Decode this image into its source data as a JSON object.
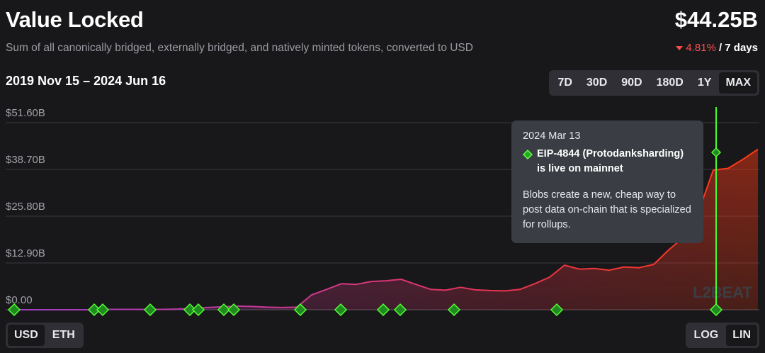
{
  "header": {
    "title": "Value Locked",
    "subtitle": "Sum of all canonically bridged, externally bridged, and natively minted tokens, converted to USD",
    "total": "$44.25B",
    "change": "4.81%",
    "change_period": "/ 7 days",
    "date_range": "2019 Nov 15 – 2024 Jun 16"
  },
  "range_buttons": [
    "7D",
    "30D",
    "90D",
    "180D",
    "1Y",
    "MAX"
  ],
  "selected_range": "MAX",
  "currency_buttons": [
    "USD",
    "ETH"
  ],
  "selected_currency": "USD",
  "scale_buttons": [
    "LOG",
    "LIN"
  ],
  "selected_scale": "LIN",
  "tooltip": {
    "date": "2024 Mar 13",
    "title": "EIP-4844 (Protodanksharding) is live on mainnet",
    "description": "Blobs create a new, cheap way to post data on-chain that is specialized for rollups."
  },
  "watermark": "L2BEAT",
  "chart_data": {
    "type": "area",
    "values": [
      0.0,
      0.0,
      0.0,
      0.0,
      0.0,
      0.0,
      0.1,
      0.1,
      0.1,
      0.1,
      0.1,
      0.2,
      0.4,
      0.6,
      0.8,
      1.0,
      0.9,
      0.7,
      0.6,
      0.7,
      4.1,
      5.6,
      7.2,
      7.0,
      7.8,
      8.0,
      8.4,
      7.0,
      5.6,
      5.4,
      6.2,
      5.5,
      5.3,
      5.2,
      5.6,
      7.2,
      9.0,
      12.3,
      11.2,
      11.4,
      10.9,
      11.8,
      11.6,
      12.5,
      16.5,
      20.0,
      27.0,
      38.5,
      39.0,
      41.5,
      44.25
    ],
    "ylim": [
      0,
      51.6
    ],
    "yticks": [
      {
        "value": 0,
        "label": "$0.00"
      },
      {
        "value": 12.9,
        "label": "$12.90B"
      },
      {
        "value": 25.8,
        "label": "$25.80B"
      },
      {
        "value": 38.7,
        "label": "$38.70B"
      },
      {
        "value": 51.6,
        "label": "$51.60B"
      }
    ],
    "grid": true,
    "log_scale": false,
    "gradient": [
      "#9b3fc0",
      "#c83a9a",
      "#e8334f",
      "#ff3a12"
    ]
  }
}
